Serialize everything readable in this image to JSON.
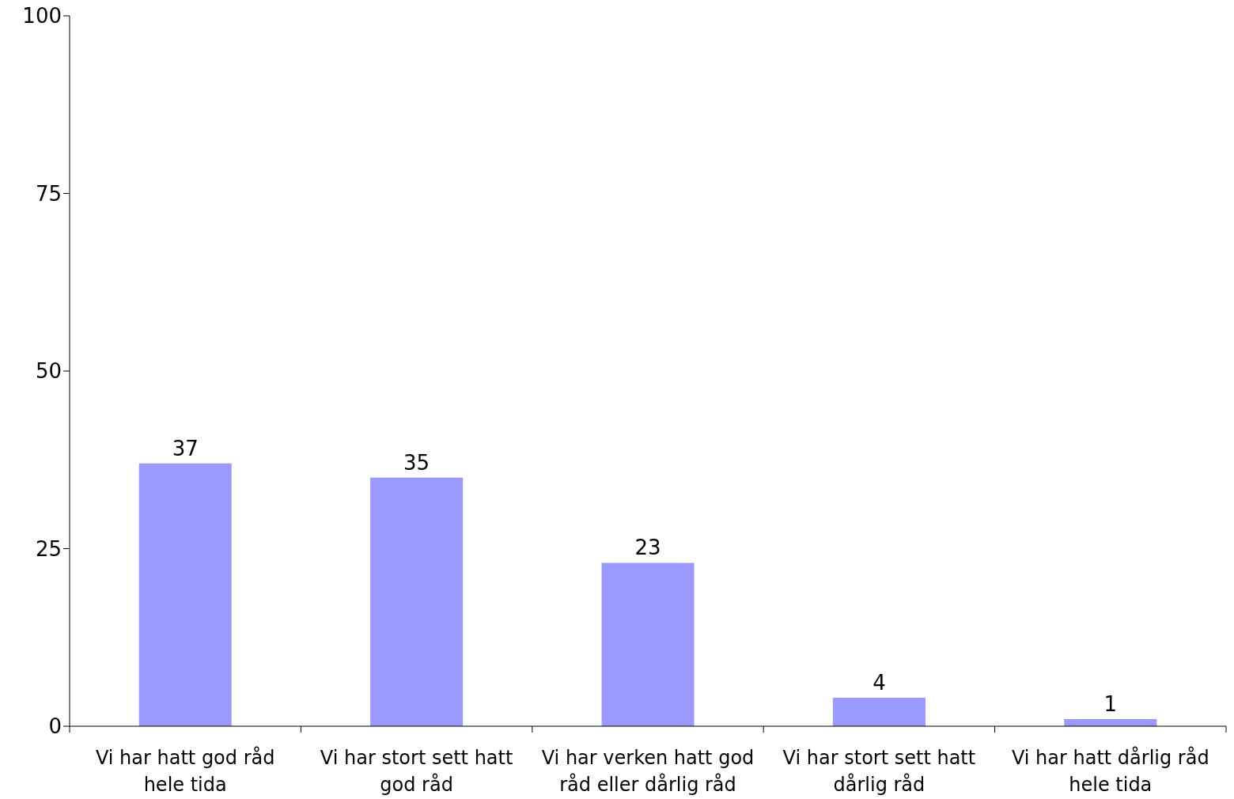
{
  "chart_data": {
    "type": "bar",
    "categories": [
      "Vi har hatt god råd hele tida",
      "Vi har stort sett hatt god råd",
      "Vi har verken hatt god råd eller dårlig råd",
      "Vi har stort sett hatt dårlig råd",
      "Vi har hatt dårlig råd hele tida"
    ],
    "values": [
      37,
      35,
      23,
      4,
      1
    ],
    "color": "#9999ff",
    "ylim": [
      0,
      100
    ],
    "yticks": [
      0,
      25,
      50,
      75,
      100
    ],
    "data_labels": true,
    "grid": false,
    "legend": false
  }
}
